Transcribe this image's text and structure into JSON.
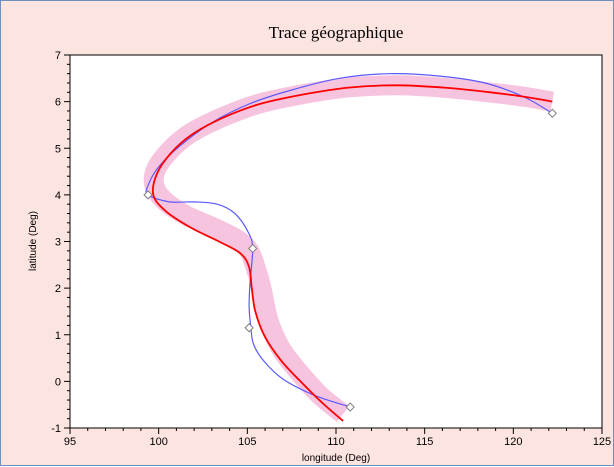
{
  "chart_data": {
    "type": "line",
    "title": "Trace géographique",
    "xlabel": "longitude (Deg)",
    "ylabel": "latitude (Deg)",
    "xlim": [
      95,
      125
    ],
    "ylim": [
      -1,
      7
    ],
    "xticks": [
      95,
      100,
      105,
      110,
      115,
      120,
      125
    ],
    "yticks": [
      -1,
      0,
      1,
      2,
      3,
      4,
      5,
      6,
      7
    ],
    "grid": false,
    "colors": {
      "background": "#fce4e0",
      "plot_area": "#ffffff",
      "blue": "#5a5aff",
      "red": "#ff0000",
      "pink": "#f7c4df",
      "marker": "#808080"
    },
    "series": [
      {
        "style": "pink-band",
        "x": [
          110.4,
          109.1,
          107.9,
          106.9,
          106.2,
          105.8,
          105.5,
          105.1,
          104.4,
          103.1,
          101.6,
          100.4,
          99.8,
          99.8,
          100.5,
          101.7,
          103.5,
          105.6,
          108.0,
          110.6,
          113.3,
          116.0,
          118.6,
          120.7,
          122.2
        ],
        "y": [
          -0.7,
          -0.3,
          0.2,
          0.7,
          1.3,
          2.0,
          2.4,
          2.8,
          3.05,
          3.3,
          3.55,
          3.85,
          4.15,
          4.5,
          4.9,
          5.3,
          5.65,
          5.95,
          6.15,
          6.3,
          6.35,
          6.3,
          6.2,
          6.1,
          6.0
        ]
      },
      {
        "style": "blue-spline",
        "x": [
          110.8,
          108.8,
          107.0,
          105.9,
          105.35,
          105.2,
          105.1,
          105.15,
          105.3,
          105.05,
          104.3,
          103.3,
          102.0,
          100.6,
          99.4,
          99.4,
          100.0,
          101.2,
          103.0,
          105.1,
          107.5,
          110.2,
          113.0,
          115.8,
          118.4,
          120.6,
          122.2
        ],
        "y": [
          -0.55,
          -0.3,
          0.05,
          0.45,
          0.8,
          1.15,
          1.6,
          2.1,
          2.85,
          3.2,
          3.6,
          3.8,
          3.85,
          3.85,
          4.0,
          4.2,
          4.6,
          5.05,
          5.55,
          5.95,
          6.25,
          6.5,
          6.6,
          6.55,
          6.4,
          6.1,
          5.75
        ]
      },
      {
        "style": "red-fit",
        "x": [
          110.4,
          109.2,
          108.0,
          106.9,
          106.0,
          105.45,
          105.25,
          105.1,
          104.6,
          103.4,
          101.8,
          100.4,
          99.7,
          99.9,
          100.7,
          101.9,
          103.6,
          105.7,
          108.1,
          110.7,
          113.4,
          116.1,
          118.7,
          120.7,
          122.2
        ],
        "y": [
          -0.85,
          -0.45,
          0.0,
          0.45,
          0.95,
          1.5,
          2.0,
          2.45,
          2.75,
          3.0,
          3.3,
          3.65,
          4.0,
          4.45,
          4.9,
          5.3,
          5.65,
          5.95,
          6.15,
          6.3,
          6.35,
          6.3,
          6.2,
          6.1,
          6.0
        ]
      },
      {
        "style": "markers",
        "x": [
          110.8,
          105.1,
          105.3,
          99.4,
          122.2
        ],
        "y": [
          -0.55,
          1.15,
          2.85,
          4.0,
          5.75
        ]
      }
    ]
  }
}
